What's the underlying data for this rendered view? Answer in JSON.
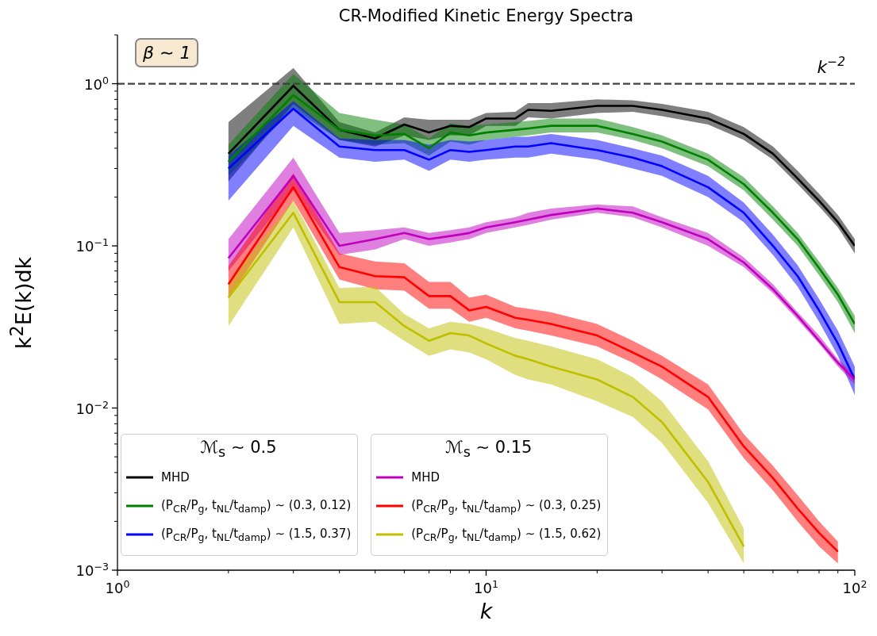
{
  "chart_data": {
    "type": "line",
    "title": "CR-Modified Kinetic Energy Spectra",
    "xlabel": "k",
    "ylabel": "k$^{2}$E(k)dk",
    "log": "xy",
    "legend": "bottom left",
    "annotations": [
      "β ∼ 1",
      "ℳ$_{s}$ ∼ 0.5",
      "ℳ$_{s}$ ∼ 0.15"
    ],
    "xlim": [
      1,
      100
    ],
    "ylim": [
      0.001,
      2
    ],
    "xticks": [
      {
        "value": 1,
        "label": "10$^{0}$"
      },
      {
        "value": 2,
        "label": null
      },
      {
        "value": 3,
        "label": null
      },
      {
        "value": 4,
        "label": null
      },
      {
        "value": 5,
        "label": null
      },
      {
        "value": 6,
        "label": null
      },
      {
        "value": 7,
        "label": null
      },
      {
        "value": 8,
        "label": null
      },
      {
        "value": 9,
        "label": null
      },
      {
        "value": 10,
        "label": "10$^{1}$"
      },
      {
        "value": 20,
        "label": null
      },
      {
        "value": 30,
        "label": null
      },
      {
        "value": 40,
        "label": null
      },
      {
        "value": 50,
        "label": null
      },
      {
        "value": 60,
        "label": null
      },
      {
        "value": 70,
        "label": null
      },
      {
        "value": 80,
        "label": null
      },
      {
        "value": 90,
        "label": null
      },
      {
        "value": 100,
        "label": "10$^{2}$"
      }
    ],
    "yticks": [
      {
        "value": 0.001,
        "label": "10$^{−3}$"
      },
      {
        "value": 0.002,
        "label": null
      },
      {
        "value": 0.003,
        "label": null
      },
      {
        "value": 0.004,
        "label": null
      },
      {
        "value": 0.005,
        "label": null
      },
      {
        "value": 0.006,
        "label": null
      },
      {
        "value": 0.007,
        "label": null
      },
      {
        "value": 0.008,
        "label": null
      },
      {
        "value": 0.009,
        "label": null
      },
      {
        "value": 0.01,
        "label": "10$^{−2}$"
      },
      {
        "value": 0.02,
        "label": null
      },
      {
        "value": 0.03,
        "label": null
      },
      {
        "value": 0.04,
        "label": null
      },
      {
        "value": 0.05,
        "label": null
      },
      {
        "value": 0.06,
        "label": null
      },
      {
        "value": 0.07,
        "label": null
      },
      {
        "value": 0.08,
        "label": null
      },
      {
        "value": 0.09,
        "label": null
      },
      {
        "value": 0.1,
        "label": "10$^{−1}$"
      },
      {
        "value": 0.2,
        "label": null
      },
      {
        "value": 0.3,
        "label": null
      },
      {
        "value": 0.4,
        "label": null
      },
      {
        "value": 0.5,
        "label": null
      },
      {
        "value": 0.6,
        "label": null
      },
      {
        "value": 0.7,
        "label": null
      },
      {
        "value": 0.8,
        "label": null
      },
      {
        "value": 0.9,
        "label": null
      },
      {
        "value": 1,
        "label": "10$^{0}$"
      },
      {
        "value": 2,
        "label": null
      }
    ],
    "ref_lines": [
      {
        "axis": "y",
        "value": 1,
        "label": "k$^{−2}$",
        "color": "#404040",
        "line_style": "dashed"
      }
    ],
    "x": [
      2,
      3,
      4,
      5,
      6,
      7,
      8,
      9,
      10,
      12,
      13,
      15,
      20,
      25,
      30,
      40,
      50,
      60,
      70,
      80,
      90,
      100
    ],
    "series": [
      {
        "name": "MHD",
        "color": "#000000",
        "values": [
          0.37,
          0.97,
          0.52,
          0.46,
          0.56,
          0.5,
          0.55,
          0.54,
          0.61,
          0.61,
          0.69,
          0.68,
          0.73,
          0.73,
          0.69,
          0.61,
          0.49,
          0.37,
          0.26,
          0.19,
          0.14,
          0.1
        ],
        "lower": [
          0.25,
          0.75,
          0.45,
          0.41,
          0.48,
          0.45,
          0.48,
          0.48,
          0.55,
          0.55,
          0.62,
          0.61,
          0.66,
          0.67,
          0.63,
          0.56,
          0.45,
          0.34,
          0.24,
          0.175,
          0.13,
          0.09
        ],
        "upper": [
          0.58,
          1.25,
          0.58,
          0.5,
          0.62,
          0.6,
          0.6,
          0.6,
          0.66,
          0.67,
          0.76,
          0.76,
          0.8,
          0.79,
          0.75,
          0.67,
          0.54,
          0.41,
          0.29,
          0.21,
          0.155,
          0.11
        ]
      },
      {
        "name": "(P$_{CR}$/P$_{g}$, t$_{NL}$/t$_{damp}$) ∼ (0.3, 0.12)",
        "color": "#008000",
        "values": [
          0.33,
          0.85,
          0.52,
          0.48,
          0.49,
          0.4,
          0.5,
          0.48,
          0.5,
          0.52,
          0.53,
          0.55,
          0.55,
          0.49,
          0.44,
          0.34,
          0.24,
          0.16,
          0.11,
          0.073,
          0.05,
          0.033
        ],
        "lower": [
          0.27,
          0.7,
          0.45,
          0.42,
          0.43,
          0.36,
          0.44,
          0.42,
          0.45,
          0.47,
          0.48,
          0.5,
          0.5,
          0.45,
          0.4,
          0.31,
          0.22,
          0.145,
          0.1,
          0.066,
          0.045,
          0.029
        ],
        "upper": [
          0.42,
          1.15,
          0.66,
          0.6,
          0.56,
          0.46,
          0.57,
          0.55,
          0.56,
          0.58,
          0.59,
          0.61,
          0.61,
          0.54,
          0.48,
          0.37,
          0.265,
          0.175,
          0.12,
          0.08,
          0.055,
          0.037
        ]
      },
      {
        "name": "(P$_{CR}$/P$_{g}$, t$_{NL}$/t$_{damp}$) ∼ (1.5, 0.37)",
        "color": "#0000ff",
        "values": [
          0.3,
          0.7,
          0.41,
          0.39,
          0.39,
          0.34,
          0.39,
          0.38,
          0.39,
          0.41,
          0.41,
          0.43,
          0.39,
          0.35,
          0.31,
          0.23,
          0.16,
          0.1,
          0.065,
          0.04,
          0.025,
          0.015
        ],
        "lower": [
          0.19,
          0.55,
          0.35,
          0.33,
          0.34,
          0.29,
          0.34,
          0.33,
          0.34,
          0.35,
          0.35,
          0.37,
          0.34,
          0.3,
          0.27,
          0.2,
          0.14,
          0.088,
          0.056,
          0.034,
          0.021,
          0.012
        ],
        "upper": [
          0.36,
          0.78,
          0.46,
          0.45,
          0.45,
          0.42,
          0.45,
          0.44,
          0.45,
          0.47,
          0.47,
          0.49,
          0.45,
          0.4,
          0.36,
          0.27,
          0.185,
          0.117,
          0.076,
          0.047,
          0.03,
          0.018
        ]
      },
      {
        "name": "MHD",
        "color": "#bf00bf",
        "values": [
          0.084,
          0.27,
          0.1,
          0.11,
          0.12,
          0.11,
          0.115,
          0.12,
          0.13,
          0.14,
          0.145,
          0.155,
          0.17,
          0.16,
          0.14,
          0.11,
          0.079,
          0.054,
          0.037,
          0.026,
          0.019,
          0.015
        ],
        "lower": [
          0.07,
          0.22,
          0.088,
          0.095,
          0.11,
          0.1,
          0.105,
          0.11,
          0.12,
          0.13,
          0.135,
          0.145,
          0.16,
          0.15,
          0.13,
          0.1,
          0.074,
          0.051,
          0.035,
          0.025,
          0.018,
          0.014
        ],
        "upper": [
          0.11,
          0.35,
          0.12,
          0.125,
          0.13,
          0.12,
          0.125,
          0.13,
          0.14,
          0.15,
          0.16,
          0.17,
          0.18,
          0.175,
          0.15,
          0.12,
          0.085,
          0.058,
          0.039,
          0.028,
          0.02,
          0.016
        ]
      },
      {
        "name": "(P$_{CR}$/P$_{g}$, t$_{NL}$/t$_{damp}$) ∼ (0.3, 0.25)",
        "color": "#ff0000",
        "values": [
          0.058,
          0.23,
          0.074,
          0.065,
          0.064,
          0.049,
          0.049,
          0.04,
          0.042,
          0.036,
          0.035,
          0.033,
          0.028,
          0.022,
          0.018,
          0.0117,
          0.0058,
          0.0037,
          0.0024,
          0.0017,
          0.0013,
          null
        ],
        "lower": [
          0.047,
          0.19,
          0.062,
          0.054,
          0.053,
          0.041,
          0.041,
          0.034,
          0.036,
          0.031,
          0.03,
          0.028,
          0.024,
          0.019,
          0.015,
          0.0098,
          0.0049,
          0.0031,
          0.002,
          0.0014,
          0.0011,
          null
        ],
        "upper": [
          0.075,
          0.28,
          0.09,
          0.08,
          0.078,
          0.06,
          0.06,
          0.048,
          0.05,
          0.042,
          0.041,
          0.039,
          0.033,
          0.026,
          0.021,
          0.014,
          0.0069,
          0.0044,
          0.0029,
          0.002,
          0.0015,
          null
        ]
      },
      {
        "name": "(P$_{CR}$/P$_{g}$, t$_{NL}$/t$_{damp}$) ∼ (1.5, 0.62)",
        "color": "#bfbf00",
        "values": [
          0.048,
          0.16,
          0.045,
          0.045,
          0.032,
          0.026,
          0.029,
          0.028,
          0.025,
          0.021,
          0.02,
          0.018,
          0.015,
          0.0117,
          0.0082,
          0.0035,
          0.0014,
          null,
          null,
          null,
          null,
          null
        ],
        "lower": [
          0.032,
          0.13,
          0.033,
          0.034,
          0.026,
          0.021,
          0.023,
          0.022,
          0.02,
          0.016,
          0.015,
          0.014,
          0.011,
          0.0088,
          0.0061,
          0.0026,
          0.0011,
          null,
          null,
          null,
          null,
          null
        ],
        "upper": [
          0.06,
          0.19,
          0.055,
          0.056,
          0.038,
          0.031,
          0.034,
          0.033,
          0.031,
          0.027,
          0.026,
          0.024,
          0.02,
          0.0155,
          0.011,
          0.0047,
          0.0018,
          null,
          null,
          null,
          null,
          null
        ]
      }
    ]
  }
}
